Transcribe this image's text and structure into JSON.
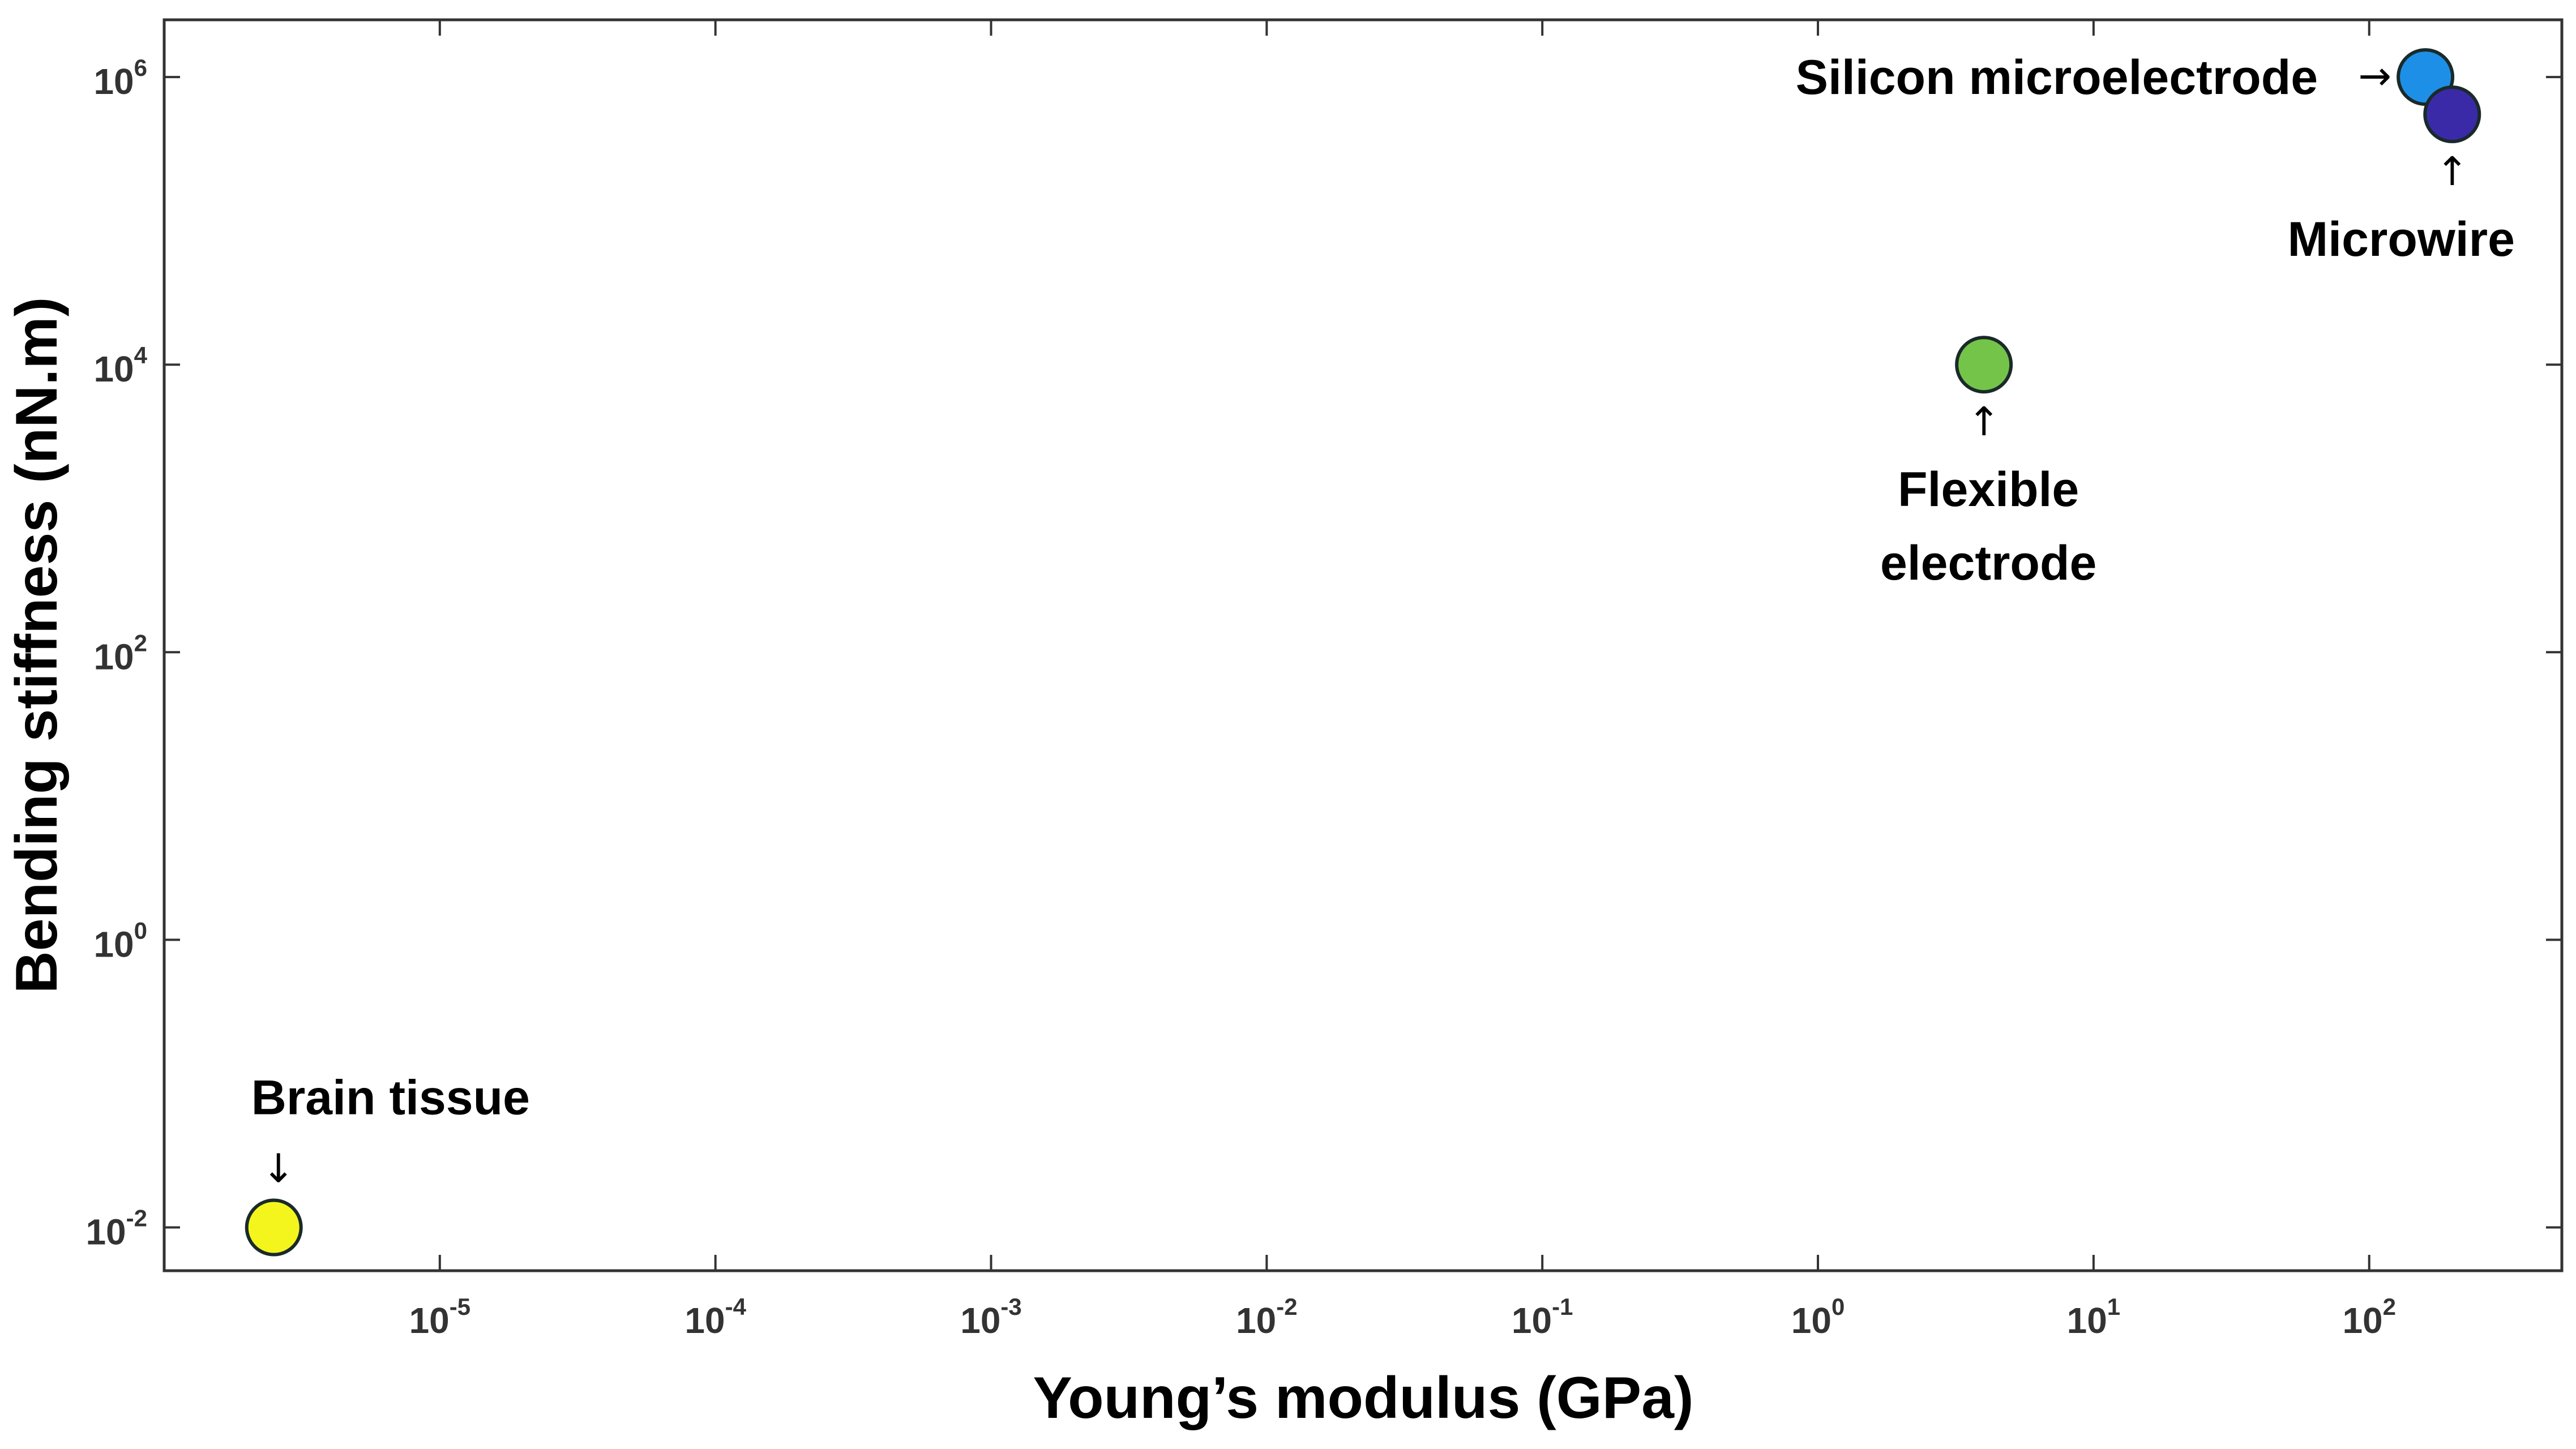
{
  "chart_data": {
    "type": "scatter",
    "title": "",
    "xlabel": "Young’s modulus (GPa)",
    "ylabel": "Bending stiffness (nN.m)",
    "x_scale": "log",
    "y_scale": "log",
    "xlim": [
      1e-06,
      500
    ],
    "ylim": [
      0.005,
      2500000
    ],
    "grid": false,
    "x_ticks": [
      {
        "value": 1e-05,
        "base": "10",
        "exp": "-5"
      },
      {
        "value": 0.0001,
        "base": "10",
        "exp": "-4"
      },
      {
        "value": 0.001,
        "base": "10",
        "exp": "-3"
      },
      {
        "value": 0.01,
        "base": "10",
        "exp": "-2"
      },
      {
        "value": 0.1,
        "base": "10",
        "exp": "-1"
      },
      {
        "value": 1,
        "base": "10",
        "exp": "0"
      },
      {
        "value": 10,
        "base": "10",
        "exp": "1"
      },
      {
        "value": 100,
        "base": "10",
        "exp": "2"
      }
    ],
    "y_ticks": [
      {
        "value": 0.01,
        "base": "10",
        "exp": "-2"
      },
      {
        "value": 1,
        "base": "10",
        "exp": "0"
      },
      {
        "value": 100,
        "base": "10",
        "exp": "2"
      },
      {
        "value": 10000,
        "base": "10",
        "exp": "4"
      },
      {
        "value": 1000000,
        "base": "10",
        "exp": "6"
      }
    ],
    "points": [
      {
        "label": "Brain tissue",
        "label_lines": [
          "Brain tissue"
        ],
        "x": 2.5e-06,
        "y": 0.01,
        "color": "#f5f51e",
        "arrow": "↓",
        "arrow_side": "above"
      },
      {
        "label": "Flexible electrode",
        "label_lines": [
          "Flexible",
          "electrode"
        ],
        "x": 4,
        "y": 10000,
        "color": "#74c44a",
        "arrow": "↑",
        "arrow_side": "below"
      },
      {
        "label": "Silicon microelectrode",
        "label_lines": [
          "Silicon microelectrode"
        ],
        "x": 160,
        "y": 1000000,
        "color": "#1e8fe6",
        "arrow": "→",
        "arrow_side": "left"
      },
      {
        "label": "Microwire",
        "label_lines": [
          "Microwire"
        ],
        "x": 200,
        "y": 550000,
        "color": "#3a2aa8",
        "arrow": "↑",
        "arrow_side": "below"
      }
    ]
  }
}
